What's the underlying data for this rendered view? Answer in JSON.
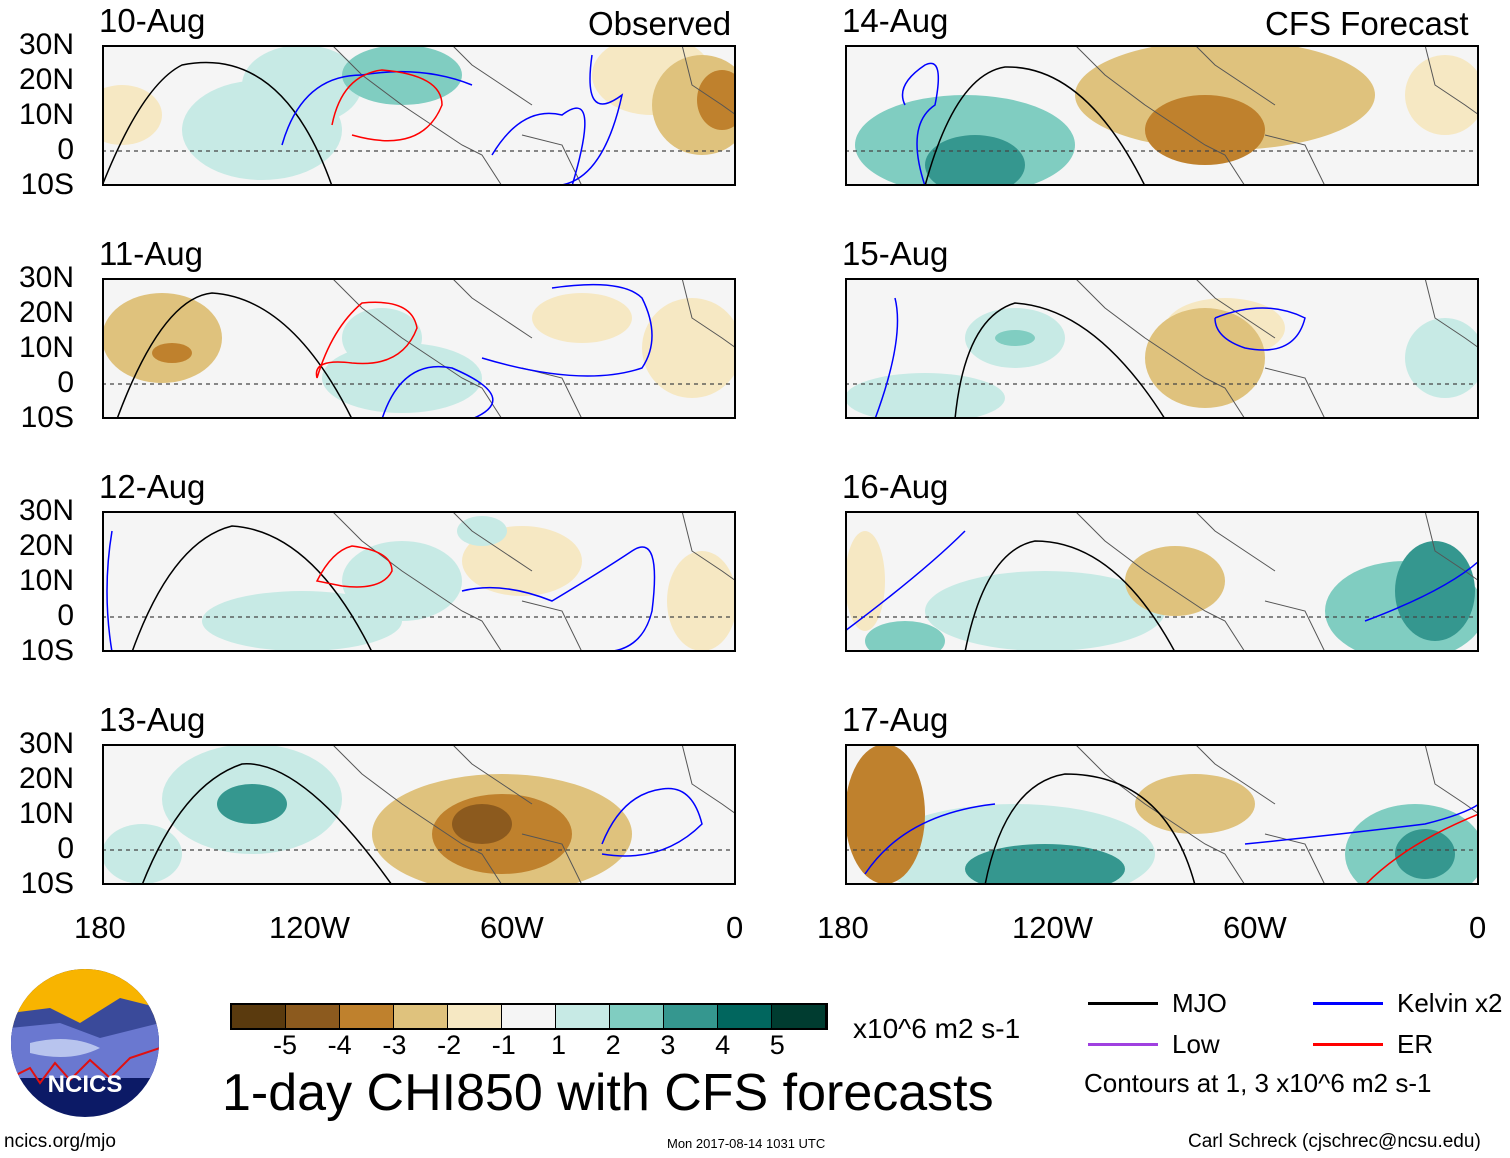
{
  "chart_data": {
    "type": "heatmap",
    "title": "1-day CHI850 with CFS forecasts",
    "units": "x10^6 m2 s-1",
    "left_column_label": "Observed",
    "right_column_label": "CFS Forecast",
    "panels": [
      {
        "date": "10-Aug",
        "column": "Observed"
      },
      {
        "date": "11-Aug",
        "column": "Observed"
      },
      {
        "date": "12-Aug",
        "column": "Observed"
      },
      {
        "date": "13-Aug",
        "column": "Observed"
      },
      {
        "date": "14-Aug",
        "column": "CFS Forecast"
      },
      {
        "date": "15-Aug",
        "column": "CFS Forecast"
      },
      {
        "date": "16-Aug",
        "column": "CFS Forecast"
      },
      {
        "date": "17-Aug",
        "column": "CFS Forecast"
      }
    ],
    "lat_ticks": [
      "30N",
      "20N",
      "10N",
      "0",
      "10S"
    ],
    "lon_ticks": [
      "180",
      "120W",
      "60W",
      "0"
    ],
    "lat_range": [
      -10,
      30
    ],
    "lon_range": [
      -180,
      0
    ],
    "colorbar": {
      "levels": [
        "-5",
        "-4",
        "-3",
        "-2",
        "-1",
        "1",
        "2",
        "3",
        "4",
        "5"
      ],
      "colors": [
        "#5a3a0e",
        "#8c5a1e",
        "#bf812d",
        "#dfc27d",
        "#f6e8c3",
        "#f5f5f5",
        "#c7eae5",
        "#80cdc1",
        "#35978f",
        "#01665e",
        "#003c30"
      ]
    },
    "legend": [
      {
        "label": "MJO",
        "color": "#000000"
      },
      {
        "label": "Kelvin x2",
        "color": "#0000ff"
      },
      {
        "label": "Low",
        "color": "#a040e0"
      },
      {
        "label": "ER",
        "color": "#ff0000"
      }
    ],
    "contour_note": "Contours at 1, 3 x10^6 m2 s-1"
  },
  "logo_text": "NCICS",
  "footer": {
    "url": "ncics.org/mjo",
    "timestamp": "Mon 2017-08-14 1031 UTC",
    "author": "Carl Schreck (cjschrec@ncsu.edu)"
  }
}
